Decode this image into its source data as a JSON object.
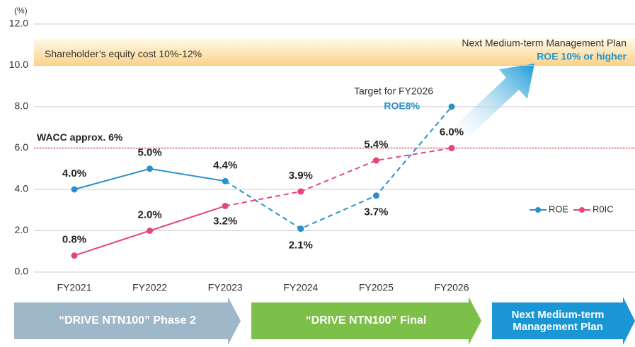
{
  "chart_data": {
    "type": "line",
    "y_unit": "(%)",
    "categories": [
      "FY2021",
      "FY2022",
      "FY2023",
      "FY2024",
      "FY2025",
      "FY2026"
    ],
    "series": [
      {
        "name": "ROE",
        "color": "#2a90c8",
        "dashed_from": 2,
        "values": [
          4.0,
          5.0,
          4.4,
          2.1,
          3.7,
          8
        ],
        "value_labels": [
          "4.0%",
          "5.0%",
          "4.4%",
          "2.1%",
          "3.7%",
          "ROE8%"
        ]
      },
      {
        "name": "R0IC",
        "color": "#e8457a",
        "dashed_from": 2,
        "values": [
          0.8,
          2.0,
          3.2,
          3.9,
          5.4,
          6.0
        ],
        "value_labels": [
          "0.8%",
          "2.0%",
          "3.2%",
          "3.9%",
          "5.4%",
          "6.0%"
        ]
      }
    ],
    "ylim": [
      0,
      12
    ],
    "yticks": [
      {
        "value": 0,
        "label": "0.0"
      },
      {
        "value": 2,
        "label": "2.0"
      },
      {
        "value": 4,
        "label": "4.0"
      },
      {
        "value": 6,
        "label": "6.0"
      },
      {
        "value": 8,
        "label": "8.0"
      },
      {
        "value": 10,
        "label": "10.0"
      },
      {
        "value": 12,
        "label": "12.0"
      }
    ],
    "reference_line": {
      "value": 6,
      "label": "WACC approx. 6%",
      "color": "#d23a3a"
    },
    "band": {
      "from": 10,
      "to": 12,
      "label": "Shareholder’s equity cost 10%-12%"
    },
    "annotations": {
      "target": "Target for FY2026",
      "plan": "Next Medium-term Management Plan",
      "plan_goal": "ROE 10% or higher"
    },
    "phases": [
      "“DRIVE NTN100” Phase 2",
      "“DRIVE NTN100” Final",
      "Next Medium-term Management Plan"
    ],
    "legend": "right"
  }
}
